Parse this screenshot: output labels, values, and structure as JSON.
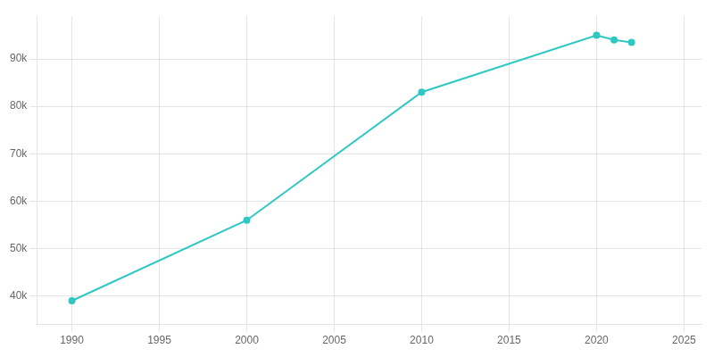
{
  "chart_data": {
    "type": "line",
    "x": [
      1990,
      2000,
      2010,
      2020,
      2021,
      2022
    ],
    "series": [
      {
        "color": "#2ec8c4",
        "marker": "circle",
        "values": [
          39000,
          56000,
          83000,
          95000,
          94000,
          93500
        ]
      }
    ],
    "xlim": [
      1988,
      2026
    ],
    "xticks": [
      1990,
      1995,
      2000,
      2005,
      2010,
      2015,
      2020,
      2025
    ],
    "ylim": [
      34000,
      99000
    ],
    "yticks": [
      {
        "value": 40000,
        "label": "40k"
      },
      {
        "value": 50000,
        "label": "50k"
      },
      {
        "value": 60000,
        "label": "60k"
      },
      {
        "value": 70000,
        "label": "70k"
      },
      {
        "value": 80000,
        "label": "80k"
      },
      {
        "value": 90000,
        "label": "90k"
      }
    ],
    "grid": true
  }
}
